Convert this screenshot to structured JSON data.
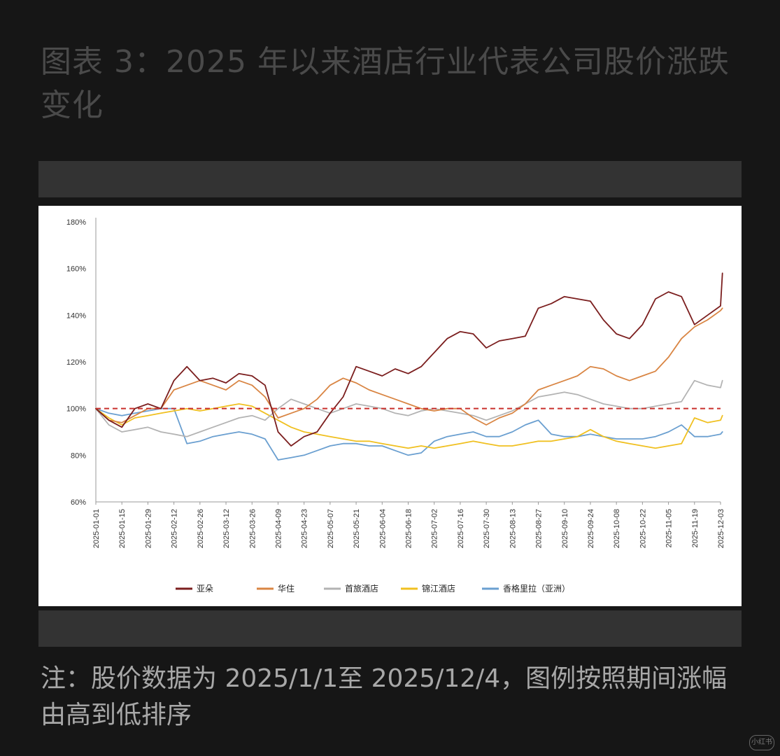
{
  "header": {
    "title": "图表 3：2025 年以来酒店行业代表公司股价涨跌变化"
  },
  "footer": {
    "note": "注：股价数据为 2025/1/1至 2025/12/4，图例按照期间涨幅由高到低排序"
  },
  "watermark": {
    "text": "小红书"
  },
  "chart_data": {
    "type": "line",
    "title": "",
    "xlabel": "",
    "ylabel": "",
    "ylim": [
      0.6,
      1.8
    ],
    "yticks": [
      "60%",
      "80%",
      "100%",
      "120%",
      "140%",
      "160%",
      "180%"
    ],
    "x_ticks": [
      "2025-01-01",
      "2025-01-15",
      "2025-01-29",
      "2025-02-12",
      "2025-02-26",
      "2025-03-12",
      "2025-03-26",
      "2025-04-09",
      "2025-04-23",
      "2025-05-07",
      "2025-05-21",
      "2025-06-04",
      "2025-06-18",
      "2025-07-02",
      "2025-07-16",
      "2025-07-30",
      "2025-08-13",
      "2025-08-27",
      "2025-09-10",
      "2025-09-24",
      "2025-10-08",
      "2025-10-22",
      "2025-11-05",
      "2025-11-19",
      "2025-12-03"
    ],
    "x_points": [
      "2025-01-01",
      "2025-01-08",
      "2025-01-15",
      "2025-01-22",
      "2025-01-29",
      "2025-02-05",
      "2025-02-12",
      "2025-02-19",
      "2025-02-26",
      "2025-03-05",
      "2025-03-12",
      "2025-03-19",
      "2025-03-26",
      "2025-04-02",
      "2025-04-09",
      "2025-04-16",
      "2025-04-23",
      "2025-04-30",
      "2025-05-07",
      "2025-05-14",
      "2025-05-21",
      "2025-05-28",
      "2025-06-04",
      "2025-06-11",
      "2025-06-18",
      "2025-06-25",
      "2025-07-02",
      "2025-07-09",
      "2025-07-16",
      "2025-07-23",
      "2025-07-30",
      "2025-08-06",
      "2025-08-13",
      "2025-08-20",
      "2025-08-27",
      "2025-09-03",
      "2025-09-10",
      "2025-09-17",
      "2025-09-24",
      "2025-10-01",
      "2025-10-08",
      "2025-10-15",
      "2025-10-22",
      "2025-10-29",
      "2025-11-05",
      "2025-11-12",
      "2025-11-19",
      "2025-11-26",
      "2025-12-03",
      "2025-12-04"
    ],
    "reference_line": {
      "value": 1.0,
      "color": "#c9302c",
      "style": "dashed"
    },
    "legend_position": "bottom",
    "series": [
      {
        "name": "亚朵",
        "color": "#7b1e1e",
        "values": [
          1.0,
          0.95,
          0.92,
          1.0,
          1.02,
          1.0,
          1.12,
          1.18,
          1.12,
          1.13,
          1.11,
          1.15,
          1.14,
          1.1,
          0.9,
          0.84,
          0.88,
          0.9,
          0.98,
          1.05,
          1.18,
          1.16,
          1.14,
          1.17,
          1.15,
          1.18,
          1.24,
          1.3,
          1.33,
          1.32,
          1.26,
          1.29,
          1.3,
          1.31,
          1.43,
          1.45,
          1.48,
          1.47,
          1.46,
          1.38,
          1.32,
          1.3,
          1.36,
          1.47,
          1.5,
          1.48,
          1.36,
          1.4,
          1.44,
          1.58
        ]
      },
      {
        "name": "华住",
        "color": "#d98543",
        "values": [
          1.0,
          0.95,
          0.94,
          0.97,
          1.0,
          1.0,
          1.08,
          1.1,
          1.12,
          1.1,
          1.08,
          1.12,
          1.1,
          1.05,
          0.96,
          0.98,
          1.0,
          1.04,
          1.1,
          1.13,
          1.11,
          1.08,
          1.06,
          1.04,
          1.02,
          1.0,
          0.99,
          1.0,
          1.0,
          0.96,
          0.93,
          0.96,
          0.98,
          1.02,
          1.08,
          1.1,
          1.12,
          1.14,
          1.18,
          1.17,
          1.14,
          1.12,
          1.14,
          1.16,
          1.22,
          1.3,
          1.35,
          1.38,
          1.42,
          1.43
        ]
      },
      {
        "name": "首旅酒店",
        "color": "#b3b3b3",
        "values": [
          1.0,
          0.93,
          0.9,
          0.91,
          0.92,
          0.9,
          0.89,
          0.88,
          0.9,
          0.92,
          0.94,
          0.96,
          0.97,
          0.95,
          1.0,
          1.04,
          1.02,
          1.0,
          0.98,
          1.0,
          1.02,
          1.01,
          1.0,
          0.98,
          0.97,
          0.99,
          1.0,
          0.99,
          0.98,
          0.97,
          0.95,
          0.97,
          0.99,
          1.02,
          1.05,
          1.06,
          1.07,
          1.06,
          1.04,
          1.02,
          1.01,
          1.0,
          1.0,
          1.01,
          1.02,
          1.03,
          1.12,
          1.1,
          1.09,
          1.12
        ]
      },
      {
        "name": "锦江酒店",
        "color": "#f0c020",
        "values": [
          1.0,
          0.96,
          0.93,
          0.96,
          0.97,
          0.98,
          0.99,
          1.0,
          0.99,
          1.0,
          1.01,
          1.02,
          1.01,
          0.98,
          0.95,
          0.92,
          0.9,
          0.89,
          0.88,
          0.87,
          0.86,
          0.86,
          0.85,
          0.84,
          0.83,
          0.84,
          0.83,
          0.84,
          0.85,
          0.86,
          0.85,
          0.84,
          0.84,
          0.85,
          0.86,
          0.86,
          0.87,
          0.88,
          0.91,
          0.88,
          0.86,
          0.85,
          0.84,
          0.83,
          0.84,
          0.85,
          0.96,
          0.94,
          0.95,
          0.97
        ]
      },
      {
        "name": "香格里拉（亚洲）",
        "color": "#6a9fd0",
        "values": [
          1.0,
          0.98,
          0.97,
          0.98,
          0.99,
          1.0,
          1.0,
          0.85,
          0.86,
          0.88,
          0.89,
          0.9,
          0.89,
          0.87,
          0.78,
          0.79,
          0.8,
          0.82,
          0.84,
          0.85,
          0.85,
          0.84,
          0.84,
          0.82,
          0.8,
          0.81,
          0.86,
          0.88,
          0.89,
          0.9,
          0.88,
          0.88,
          0.9,
          0.93,
          0.95,
          0.89,
          0.88,
          0.88,
          0.89,
          0.88,
          0.87,
          0.87,
          0.87,
          0.88,
          0.9,
          0.93,
          0.88,
          0.88,
          0.89,
          0.9
        ]
      }
    ]
  }
}
